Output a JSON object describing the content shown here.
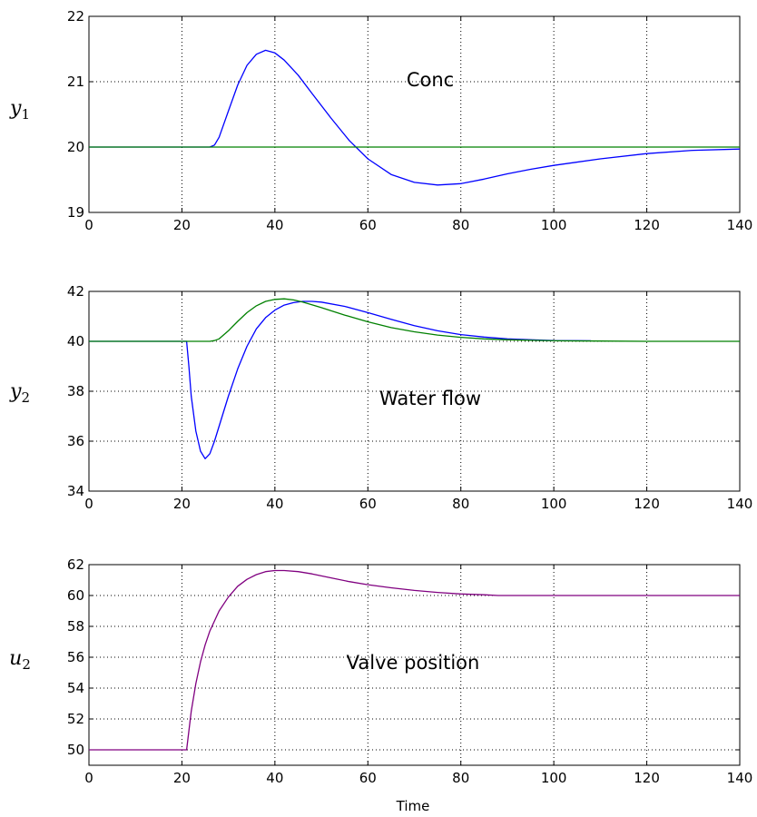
{
  "chart_data": [
    {
      "type": "line",
      "ylabel": "y",
      "ylabel_sub": "1",
      "annotation": "Conc",
      "xlabel": "",
      "xlim": [
        0,
        140
      ],
      "ylim": [
        19,
        22
      ],
      "xticks": [
        "0",
        "20",
        "40",
        "60",
        "80",
        "100",
        "120",
        "140"
      ],
      "yticks": [
        "19",
        "20",
        "21",
        "22"
      ],
      "grid": true,
      "series": [
        {
          "color": "#0000ff",
          "x": [
            0,
            26,
            27,
            28,
            30,
            32,
            34,
            36,
            38,
            40,
            42,
            45,
            48,
            52,
            56,
            60,
            65,
            70,
            75,
            80,
            85,
            90,
            95,
            100,
            110,
            120,
            130,
            140
          ],
          "y": [
            20,
            20,
            20.03,
            20.15,
            20.55,
            20.95,
            21.25,
            21.42,
            21.48,
            21.44,
            21.33,
            21.1,
            20.82,
            20.45,
            20.1,
            19.82,
            19.58,
            19.46,
            19.42,
            19.44,
            19.51,
            19.59,
            19.66,
            19.72,
            19.82,
            19.9,
            19.95,
            19.97
          ]
        },
        {
          "color": "#008000",
          "x": [
            0,
            140
          ],
          "y": [
            20,
            20
          ]
        }
      ]
    },
    {
      "type": "line",
      "ylabel": "y",
      "ylabel_sub": "2",
      "annotation": "Water flow",
      "xlabel": "",
      "xlim": [
        0,
        140
      ],
      "ylim": [
        34,
        42
      ],
      "xticks": [
        "0",
        "20",
        "40",
        "60",
        "80",
        "100",
        "120",
        "140"
      ],
      "yticks": [
        "34",
        "36",
        "38",
        "40",
        "42"
      ],
      "grid": true,
      "series": [
        {
          "color": "#0000ff",
          "x": [
            0,
            21,
            21.5,
            22,
            23,
            24,
            25,
            26,
            27,
            28,
            30,
            32,
            34,
            36,
            38,
            40,
            42,
            44,
            46,
            48,
            50,
            55,
            60,
            65,
            70,
            75,
            80,
            85,
            90,
            95,
            100,
            108
          ],
          "y": [
            40,
            40,
            39,
            37.8,
            36.4,
            35.6,
            35.3,
            35.5,
            36,
            36.6,
            37.8,
            38.9,
            39.8,
            40.5,
            40.95,
            41.25,
            41.45,
            41.55,
            41.6,
            41.6,
            41.57,
            41.4,
            41.15,
            40.88,
            40.63,
            40.42,
            40.27,
            40.17,
            40.1,
            40.06,
            40.03,
            40.02
          ]
        },
        {
          "color": "#008000",
          "x": [
            0,
            26,
            27,
            28,
            30,
            32,
            34,
            36,
            38,
            40,
            42,
            44,
            46,
            50,
            55,
            60,
            65,
            70,
            75,
            80,
            85,
            90,
            100,
            110,
            120,
            140
          ],
          "y": [
            40,
            40,
            40.03,
            40.1,
            40.42,
            40.8,
            41.15,
            41.42,
            41.6,
            41.68,
            41.7,
            41.66,
            41.57,
            41.35,
            41.05,
            40.78,
            40.55,
            40.38,
            40.25,
            40.16,
            40.1,
            40.06,
            40.02,
            40.01,
            40,
            40
          ]
        }
      ]
    },
    {
      "type": "line",
      "ylabel": "u",
      "ylabel_sub": "2",
      "annotation": "Valve position",
      "xlabel": "Time",
      "xlim": [
        0,
        140
      ],
      "ylim": [
        49,
        62
      ],
      "xticks": [
        "0",
        "20",
        "40",
        "60",
        "80",
        "100",
        "120",
        "140"
      ],
      "yticks": [
        "50",
        "52",
        "54",
        "56",
        "58",
        "60",
        "62"
      ],
      "grid": true,
      "series": [
        {
          "color": "#800080",
          "x": [
            0,
            21,
            22,
            23,
            24,
            25,
            26,
            28,
            30,
            32,
            34,
            36,
            38,
            40,
            42,
            45,
            48,
            52,
            56,
            60,
            65,
            70,
            75,
            80,
            85,
            88,
            100,
            120,
            140
          ],
          "y": [
            50,
            50,
            52.5,
            54.3,
            55.7,
            56.8,
            57.7,
            59,
            59.9,
            60.6,
            61.05,
            61.35,
            61.55,
            61.62,
            61.62,
            61.55,
            61.4,
            61.15,
            60.9,
            60.7,
            60.5,
            60.33,
            60.2,
            60.1,
            60.05,
            60,
            60,
            60,
            60
          ]
        }
      ]
    }
  ]
}
